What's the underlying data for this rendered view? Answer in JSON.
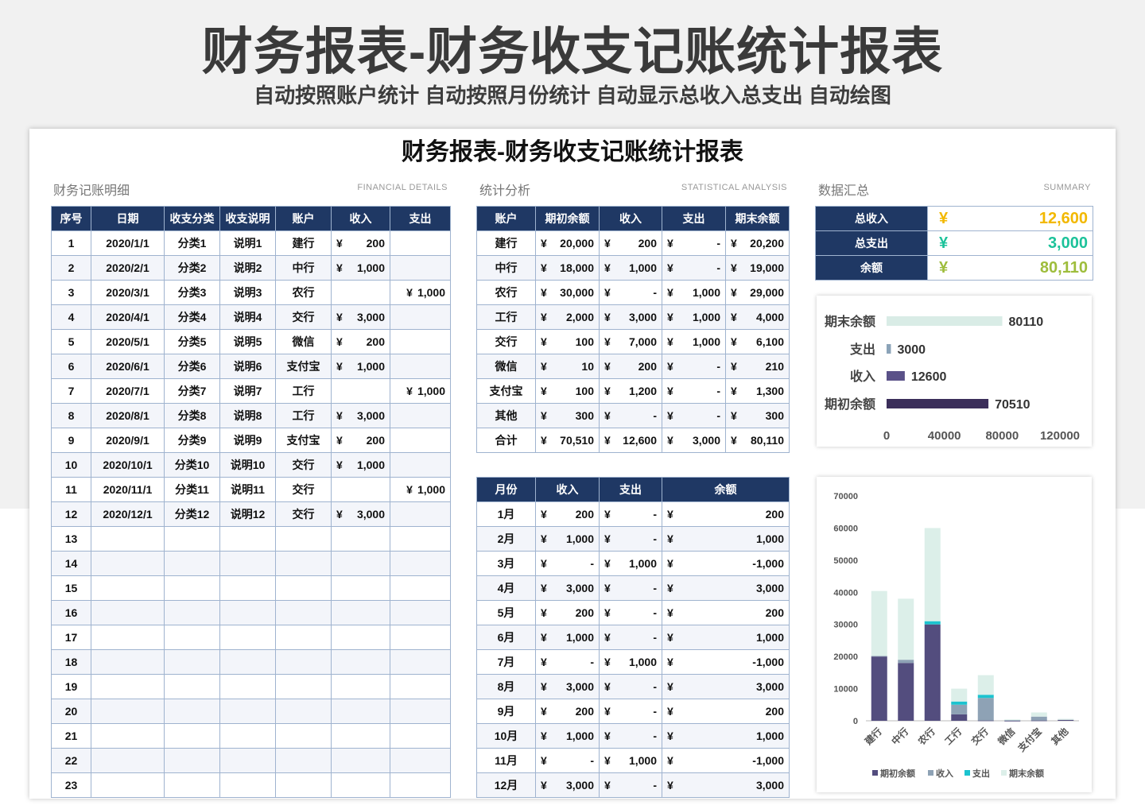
{
  "header": {
    "title": "财务报表-财务收支记账统计报表",
    "subtitle": "自动按照账户统计 自动按照月份统计 自动显示总收入总支出  自动绘图"
  },
  "sheet": {
    "title": "财务报表-财务收支记账统计报表",
    "sections": {
      "details": {
        "label": "财务记账明细",
        "en": "FINANCIAL  DETAILS"
      },
      "analysis": {
        "label": "统计分析",
        "en": "STATISTICAL ANALYSIS"
      },
      "summary": {
        "label": "数据汇总",
        "en": "SUMMARY"
      }
    }
  },
  "currency_symbol": "¥",
  "details_table": {
    "headers": [
      "序号",
      "日期",
      "收支分类",
      "收支说明",
      "账户",
      "收入",
      "支出"
    ],
    "rows": [
      {
        "no": "1",
        "date": "2020/1/1",
        "cat": "分类1",
        "desc": "说明1",
        "acct": "建行",
        "inc": "200",
        "exp": ""
      },
      {
        "no": "2",
        "date": "2020/2/1",
        "cat": "分类2",
        "desc": "说明2",
        "acct": "中行",
        "inc": "1,000",
        "exp": ""
      },
      {
        "no": "3",
        "date": "2020/3/1",
        "cat": "分类3",
        "desc": "说明3",
        "acct": "农行",
        "inc": "",
        "exp": "1,000"
      },
      {
        "no": "4",
        "date": "2020/4/1",
        "cat": "分类4",
        "desc": "说明4",
        "acct": "交行",
        "inc": "3,000",
        "exp": ""
      },
      {
        "no": "5",
        "date": "2020/5/1",
        "cat": "分类5",
        "desc": "说明5",
        "acct": "微信",
        "inc": "200",
        "exp": ""
      },
      {
        "no": "6",
        "date": "2020/6/1",
        "cat": "分类6",
        "desc": "说明6",
        "acct": "支付宝",
        "inc": "1,000",
        "exp": ""
      },
      {
        "no": "7",
        "date": "2020/7/1",
        "cat": "分类7",
        "desc": "说明7",
        "acct": "工行",
        "inc": "",
        "exp": "1,000"
      },
      {
        "no": "8",
        "date": "2020/8/1",
        "cat": "分类8",
        "desc": "说明8",
        "acct": "工行",
        "inc": "3,000",
        "exp": ""
      },
      {
        "no": "9",
        "date": "2020/9/1",
        "cat": "分类9",
        "desc": "说明9",
        "acct": "支付宝",
        "inc": "200",
        "exp": ""
      },
      {
        "no": "10",
        "date": "2020/10/1",
        "cat": "分类10",
        "desc": "说明10",
        "acct": "交行",
        "inc": "1,000",
        "exp": ""
      },
      {
        "no": "11",
        "date": "2020/11/1",
        "cat": "分类11",
        "desc": "说明11",
        "acct": "交行",
        "inc": "",
        "exp": "1,000"
      },
      {
        "no": "12",
        "date": "2020/12/1",
        "cat": "分类12",
        "desc": "说明12",
        "acct": "交行",
        "inc": "3,000",
        "exp": ""
      },
      {
        "no": "13",
        "date": "",
        "cat": "",
        "desc": "",
        "acct": "",
        "inc": "",
        "exp": ""
      },
      {
        "no": "14",
        "date": "",
        "cat": "",
        "desc": "",
        "acct": "",
        "inc": "",
        "exp": ""
      },
      {
        "no": "15",
        "date": "",
        "cat": "",
        "desc": "",
        "acct": "",
        "inc": "",
        "exp": ""
      },
      {
        "no": "16",
        "date": "",
        "cat": "",
        "desc": "",
        "acct": "",
        "inc": "",
        "exp": ""
      },
      {
        "no": "17",
        "date": "",
        "cat": "",
        "desc": "",
        "acct": "",
        "inc": "",
        "exp": ""
      },
      {
        "no": "18",
        "date": "",
        "cat": "",
        "desc": "",
        "acct": "",
        "inc": "",
        "exp": ""
      },
      {
        "no": "19",
        "date": "",
        "cat": "",
        "desc": "",
        "acct": "",
        "inc": "",
        "exp": ""
      },
      {
        "no": "20",
        "date": "",
        "cat": "",
        "desc": "",
        "acct": "",
        "inc": "",
        "exp": ""
      },
      {
        "no": "21",
        "date": "",
        "cat": "",
        "desc": "",
        "acct": "",
        "inc": "",
        "exp": ""
      },
      {
        "no": "22",
        "date": "",
        "cat": "",
        "desc": "",
        "acct": "",
        "inc": "",
        "exp": ""
      },
      {
        "no": "23",
        "date": "",
        "cat": "",
        "desc": "",
        "acct": "",
        "inc": "",
        "exp": ""
      }
    ]
  },
  "account_table": {
    "headers": [
      "账户",
      "期初余额",
      "收入",
      "支出",
      "期末余额"
    ],
    "rows": [
      {
        "acct": "建行",
        "open": "20,000",
        "inc": "200",
        "exp": "-",
        "close": "20,200"
      },
      {
        "acct": "中行",
        "open": "18,000",
        "inc": "1,000",
        "exp": "-",
        "close": "19,000"
      },
      {
        "acct": "农行",
        "open": "30,000",
        "inc": "-",
        "exp": "1,000",
        "close": "29,000"
      },
      {
        "acct": "工行",
        "open": "2,000",
        "inc": "3,000",
        "exp": "1,000",
        "close": "4,000"
      },
      {
        "acct": "交行",
        "open": "100",
        "inc": "7,000",
        "exp": "1,000",
        "close": "6,100"
      },
      {
        "acct": "微信",
        "open": "10",
        "inc": "200",
        "exp": "-",
        "close": "210"
      },
      {
        "acct": "支付宝",
        "open": "100",
        "inc": "1,200",
        "exp": "-",
        "close": "1,300"
      },
      {
        "acct": "其他",
        "open": "300",
        "inc": "-",
        "exp": "-",
        "close": "300"
      },
      {
        "acct": "合计",
        "open": "70,510",
        "inc": "12,600",
        "exp": "3,000",
        "close": "80,110"
      }
    ]
  },
  "month_table": {
    "headers": [
      "月份",
      "收入",
      "支出",
      "余额"
    ],
    "rows": [
      {
        "month": "1月",
        "inc": "200",
        "exp": "-",
        "bal": "200"
      },
      {
        "month": "2月",
        "inc": "1,000",
        "exp": "-",
        "bal": "1,000"
      },
      {
        "month": "3月",
        "inc": "-",
        "exp": "1,000",
        "bal": "-1,000"
      },
      {
        "month": "4月",
        "inc": "3,000",
        "exp": "-",
        "bal": "3,000"
      },
      {
        "month": "5月",
        "inc": "200",
        "exp": "-",
        "bal": "200"
      },
      {
        "month": "6月",
        "inc": "1,000",
        "exp": "-",
        "bal": "1,000"
      },
      {
        "month": "7月",
        "inc": "-",
        "exp": "1,000",
        "bal": "-1,000"
      },
      {
        "month": "8月",
        "inc": "3,000",
        "exp": "-",
        "bal": "3,000"
      },
      {
        "month": "9月",
        "inc": "200",
        "exp": "-",
        "bal": "200"
      },
      {
        "month": "10月",
        "inc": "1,000",
        "exp": "-",
        "bal": "1,000"
      },
      {
        "month": "11月",
        "inc": "-",
        "exp": "1,000",
        "bal": "-1,000"
      },
      {
        "month": "12月",
        "inc": "3,000",
        "exp": "-",
        "bal": "3,000"
      }
    ]
  },
  "summary": [
    {
      "label": "总收入",
      "value": "12,600",
      "color": "#f2b800"
    },
    {
      "label": "总支出",
      "value": "3,000",
      "color": "#1cc29a"
    },
    {
      "label": "余额",
      "value": "80,110",
      "color": "#9ebd3c"
    }
  ],
  "colors": {
    "header_bg": "#1f3864",
    "open_balance": "#3b2e5a",
    "income": "#5a5188",
    "expense": "#8ba3b8",
    "close_balance": "#d9ece6",
    "stack_open": "#534d7e",
    "stack_income": "#8ea2b5",
    "stack_expense": "#1cc3cf",
    "stack_close": "#dcefe9"
  },
  "chart_data": [
    {
      "type": "bar",
      "orientation": "horizontal",
      "categories": [
        "期末余额",
        "支出",
        "收入",
        "期初余额"
      ],
      "values": [
        80110,
        3000,
        12600,
        70510
      ],
      "xlim": [
        0,
        120000
      ],
      "xticks": [
        "0",
        "40000",
        "80000",
        "120000"
      ],
      "data_labels": true,
      "grid": false
    },
    {
      "type": "bar",
      "stacked": true,
      "categories": [
        "建行",
        "中行",
        "农行",
        "工行",
        "交行",
        "微信",
        "支付宝",
        "其他"
      ],
      "series": [
        {
          "name": "期初余额",
          "values": [
            20000,
            18000,
            30000,
            2000,
            100,
            10,
            100,
            300
          ]
        },
        {
          "name": "收入",
          "values": [
            200,
            1000,
            0,
            3000,
            7000,
            200,
            1200,
            0
          ]
        },
        {
          "name": "支出",
          "values": [
            0,
            0,
            1000,
            1000,
            1000,
            0,
            0,
            0
          ]
        },
        {
          "name": "期末余额",
          "values": [
            20200,
            19000,
            29000,
            4000,
            6100,
            210,
            1300,
            300
          ]
        }
      ],
      "ylim": [
        0,
        70000
      ],
      "yticks": [
        "0",
        "10000",
        "20000",
        "30000",
        "40000",
        "50000",
        "60000",
        "70000"
      ],
      "legend": "bottom",
      "grid": false
    }
  ]
}
